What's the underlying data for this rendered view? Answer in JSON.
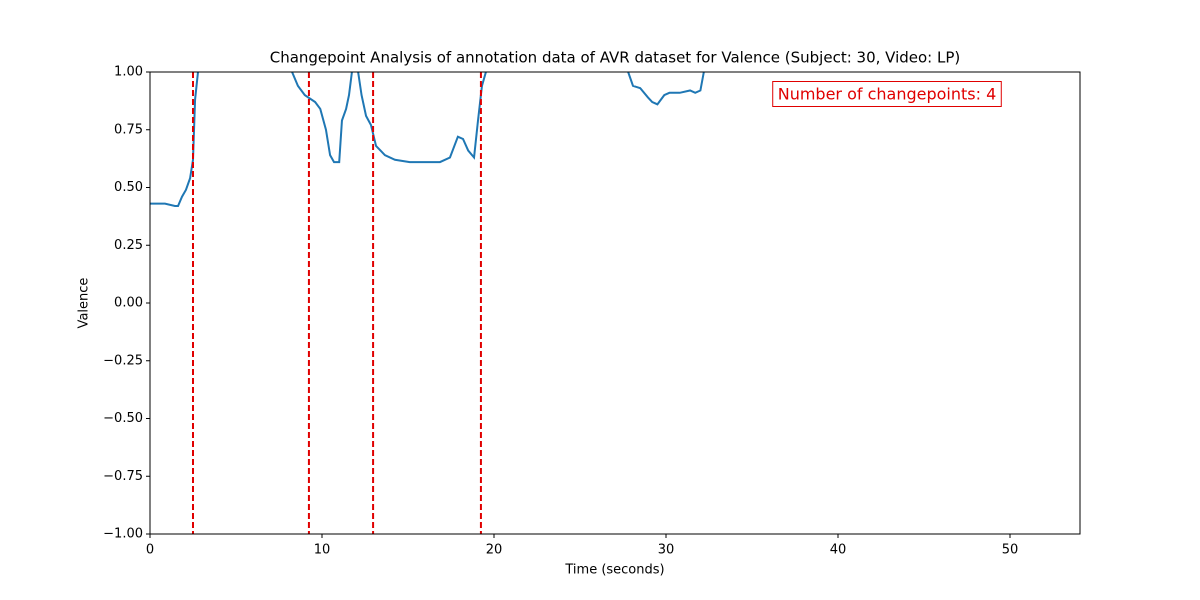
{
  "chart_data": {
    "type": "line",
    "title": "Changepoint Analysis of annotation data of AVR dataset for Valence (Subject: 30, Video: LP)",
    "xlabel": "Time (seconds)",
    "ylabel": "Valence",
    "x": [
      0,
      0.87,
      1.45,
      1.63,
      1.86,
      2.09,
      2.33,
      2.5,
      2.62,
      2.79,
      3.2,
      5.5,
      8.0,
      8.26,
      8.6,
      9.0,
      9.6,
      9.9,
      10.23,
      10.47,
      10.7,
      11.0,
      11.16,
      11.4,
      11.57,
      11.74,
      11.9,
      12.1,
      12.3,
      12.56,
      12.85,
      13.14,
      13.66,
      14.24,
      15.1,
      15.99,
      16.86,
      17.44,
      17.9,
      18.2,
      18.5,
      18.84,
      19.07,
      19.3,
      19.53,
      20.0,
      24.0,
      27.5,
      27.8,
      28.08,
      28.5,
      28.95,
      29.2,
      29.5,
      29.9,
      30.2,
      30.8,
      31.4,
      31.7,
      32.0,
      32.2,
      32.6
    ],
    "values": [
      0.43,
      0.43,
      0.42,
      0.42,
      0.46,
      0.49,
      0.54,
      0.62,
      0.88,
      1.0,
      1.05,
      1.05,
      1.03,
      1.0,
      0.94,
      0.9,
      0.87,
      0.84,
      0.75,
      0.64,
      0.61,
      0.61,
      0.79,
      0.84,
      0.9,
      1.0,
      1.03,
      1.0,
      0.9,
      0.81,
      0.77,
      0.68,
      0.64,
      0.62,
      0.61,
      0.61,
      0.61,
      0.63,
      0.72,
      0.71,
      0.66,
      0.63,
      0.79,
      0.94,
      1.0,
      1.05,
      1.05,
      1.03,
      1.0,
      0.94,
      0.93,
      0.89,
      0.87,
      0.86,
      0.9,
      0.91,
      0.91,
      0.92,
      0.91,
      0.92,
      1.0,
      1.05
    ],
    "color": "#1f77b4",
    "changepoints": [
      2.5,
      9.24,
      12.97,
      19.24
    ],
    "changepoint_color": "#e00000",
    "annotation": "Number of changepoints: 4",
    "xlim": [
      0,
      54.07
    ],
    "xticks": [
      0,
      10,
      20,
      30,
      40,
      50
    ],
    "ylim": [
      -1,
      1
    ],
    "yticks": [
      {
        "value": -1,
        "label": "−1.00"
      },
      {
        "value": -0.75,
        "label": "−0.75"
      },
      {
        "value": -0.5,
        "label": "−0.50"
      },
      {
        "value": -0.25,
        "label": "−0.25"
      },
      {
        "value": 0,
        "label": "0.00"
      },
      {
        "value": 0.25,
        "label": "0.25"
      },
      {
        "value": 0.5,
        "label": "0.50"
      },
      {
        "value": 0.75,
        "label": "0.75"
      },
      {
        "value": 1,
        "label": "1.00"
      }
    ]
  }
}
